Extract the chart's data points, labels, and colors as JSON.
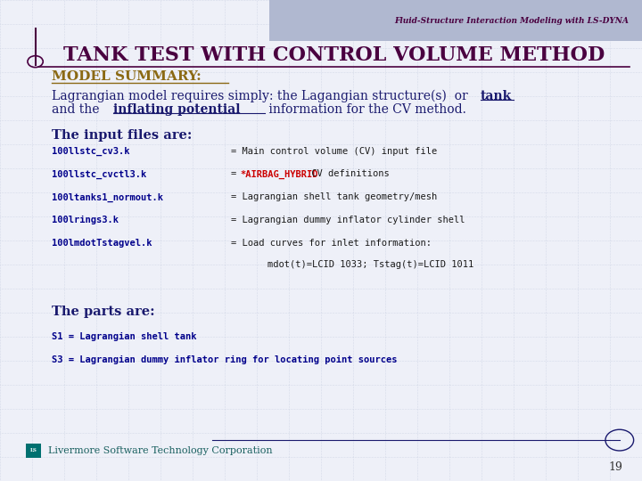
{
  "content_bg": "#eef0f8",
  "header_bar_color": "#b0b8d0",
  "title_top": "Fluid-Structure Interaction Modeling with LS-DYNA",
  "title_main": "TANK TEST WITH CONTROL VOLUME METHOD",
  "section1": "MODEL SUMMARY:",
  "section2": "The input files are:",
  "section3": "The parts are:",
  "parts": [
    "S1 = Lagrangian shell tank",
    "S3 = Lagrangian dummy inflator ring for locating point sources"
  ],
  "footer_text": "Livermore Software Technology Corporation",
  "page_num": "19",
  "grid_color": "#c0c8dc",
  "title_color": "#4a0040",
  "section_color": "#8b6914",
  "body_color": "#1a1a6e",
  "mono_color": "#00008b",
  "footer_color": "#1a6060",
  "red_color": "#cc0000"
}
